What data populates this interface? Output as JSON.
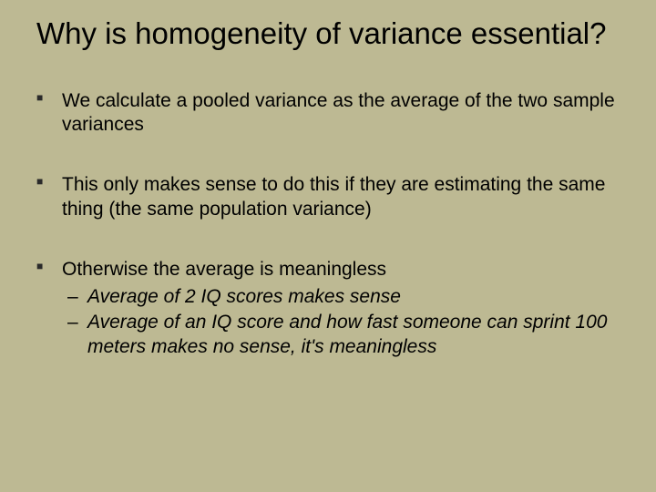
{
  "background_color": "#bdb993",
  "text_color": "#000000",
  "title": "Why is homogeneity of variance essential?",
  "title_fontsize": 33,
  "body_fontsize": 21,
  "bullets": [
    {
      "text": "We calculate a pooled variance as the average of the two sample variances",
      "sub": []
    },
    {
      "text": "This only makes sense to do this if they are estimating the same thing (the same population variance)",
      "sub": []
    },
    {
      "text": "Otherwise the average is meaningless",
      "sub": [
        "Average of 2 IQ scores makes sense",
        "Average of an IQ score and how fast someone can sprint 100 meters makes no sense, it's meaningless"
      ]
    }
  ]
}
